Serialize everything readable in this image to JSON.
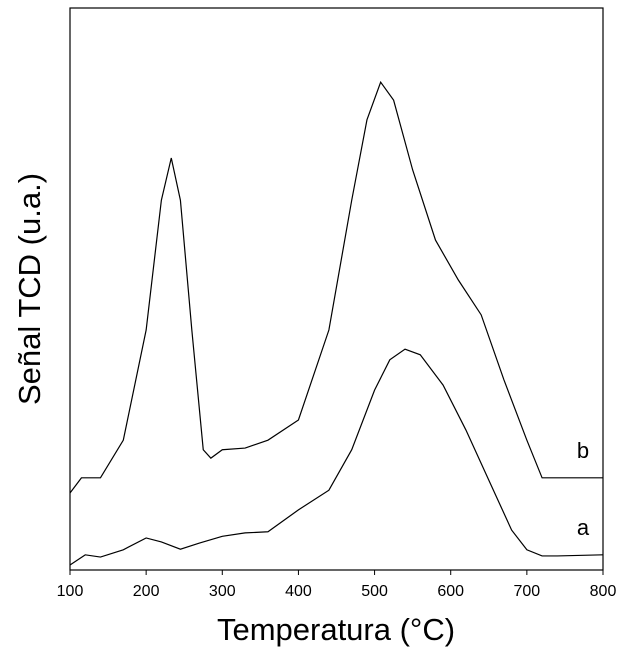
{
  "chart_data": {
    "type": "line",
    "x_label": "Temperatura (°C)",
    "y_label": "Señal TCD (u.a.)",
    "xlim": [
      100,
      800
    ],
    "xticks": [
      100,
      200,
      300,
      400,
      500,
      600,
      700,
      800
    ],
    "ylim": [
      0,
      100
    ],
    "series": [
      {
        "name": "a",
        "color": "#000000",
        "x": [
          100,
          120,
          140,
          170,
          200,
          220,
          245,
          270,
          300,
          330,
          360,
          400,
          440,
          470,
          500,
          520,
          540,
          560,
          590,
          620,
          650,
          680,
          700,
          720,
          740,
          800
        ],
        "values": [
          0.9,
          2.7,
          2.3,
          3.6,
          5.7,
          5.0,
          3.7,
          4.8,
          6.0,
          6.6,
          6.8,
          10.7,
          14.2,
          21.4,
          32.0,
          37.4,
          39.3,
          38.3,
          32.9,
          24.9,
          16.0,
          7.1,
          3.6,
          2.5,
          2.5,
          2.7
        ]
      },
      {
        "name": "b",
        "color": "#000000",
        "x": [
          100,
          115,
          140,
          170,
          200,
          220,
          233,
          245,
          260,
          275,
          285,
          300,
          330,
          360,
          400,
          440,
          470,
          490,
          508,
          525,
          550,
          580,
          610,
          640,
          670,
          700,
          720,
          800
        ],
        "values": [
          13.7,
          16.4,
          16.4,
          23.1,
          42.7,
          65.8,
          73.3,
          65.8,
          42.7,
          21.4,
          19.9,
          21.4,
          21.7,
          23.1,
          26.7,
          42.7,
          65.8,
          80.1,
          86.8,
          83.6,
          71.2,
          58.7,
          51.6,
          45.4,
          33.8,
          23.1,
          16.4,
          16.4
        ]
      }
    ]
  }
}
